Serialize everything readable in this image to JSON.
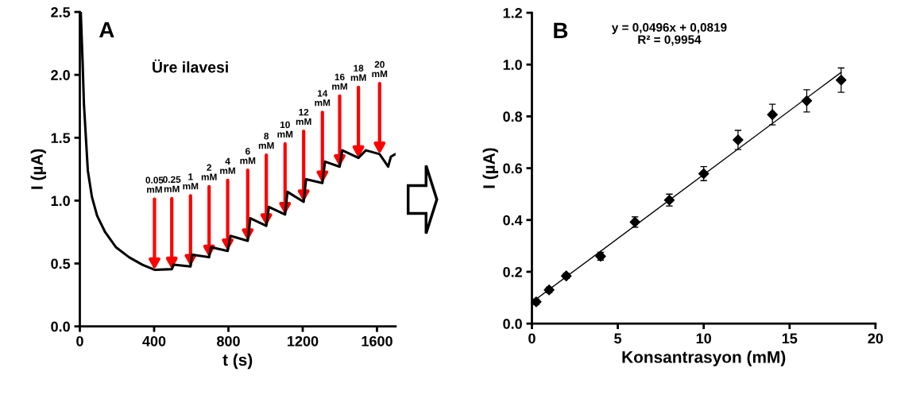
{
  "chart_data": [
    {
      "type": "line",
      "title": "A",
      "xlabel": "t (s)",
      "ylabel": "I (µA)",
      "xlim": [
        0,
        1700
      ],
      "xticks": [
        0,
        400,
        800,
        1200,
        1600
      ],
      "ylim": [
        0,
        2.5
      ],
      "yticks": [
        {
          "value": 0,
          "label": "0.0"
        },
        {
          "value": 0.5,
          "label": "0.5"
        },
        {
          "value": 1,
          "label": "1.0"
        },
        {
          "value": 1.5,
          "label": "1.5"
        },
        {
          "value": 2,
          "label": "2.0"
        },
        {
          "value": 2.5,
          "label": "2.5"
        }
      ],
      "series": [
        {
          "color": "#000000",
          "x": [
            5,
            15,
            22,
            43,
            65,
            93,
            136,
            194,
            265,
            337,
            402,
            495,
            505,
            596,
            605,
            696,
            706,
            796,
            811,
            904,
            918,
            1004,
            1018,
            1105,
            1118,
            1205,
            1218,
            1306,
            1320,
            1399,
            1413,
            1500,
            1540,
            1614,
            1660,
            1675,
            1700
          ],
          "values": [
            2.5,
            2.1,
            1.77,
            1.24,
            1.03,
            0.88,
            0.75,
            0.63,
            0.55,
            0.49,
            0.45,
            0.455,
            0.49,
            0.477,
            0.57,
            0.55,
            0.63,
            0.6,
            0.72,
            0.68,
            0.86,
            0.8,
            0.95,
            0.89,
            1.07,
            0.99,
            1.17,
            1.14,
            1.31,
            1.27,
            1.4,
            1.34,
            1.4,
            1.37,
            1.27,
            1.35,
            1.37
          ]
        }
      ],
      "annotations": [
        "Üre ilavesi",
        {
          "text": "0.05\nmM",
          "x": 402,
          "y": 0.45
        },
        {
          "text": "0.25\nmM",
          "x": 495,
          "y": 0.455
        },
        {
          "text": "1\nmM",
          "x": 596,
          "y": 0.477
        },
        {
          "text": "2\nmM",
          "x": 696,
          "y": 0.55
        },
        {
          "text": "4\nmM",
          "x": 796,
          "y": 0.6
        },
        {
          "text": "6\nmM",
          "x": 904,
          "y": 0.68
        },
        {
          "text": "8\nmM",
          "x": 1004,
          "y": 0.8
        },
        {
          "text": "10\nmM",
          "x": 1105,
          "y": 0.89
        },
        {
          "text": "12\nmM",
          "x": 1205,
          "y": 0.99
        },
        {
          "text": "14\nmM",
          "x": 1306,
          "y": 1.14
        },
        {
          "text": "16\nmM",
          "x": 1399,
          "y": 1.27
        },
        {
          "text": "18\nmM",
          "x": 1500,
          "y": 1.34
        },
        {
          "text": "20\nmM",
          "x": 1614,
          "y": 1.37
        }
      ]
    },
    {
      "type": "scatter",
      "title": "B",
      "xlabel": "Konsantrasyon (mM)",
      "ylabel": "I (µA)",
      "xlim": [
        0,
        20
      ],
      "xticks": [
        0,
        5,
        10,
        15,
        20
      ],
      "ylim": [
        0,
        1.2
      ],
      "yticks": [
        {
          "value": 0,
          "label": "0.0"
        },
        {
          "value": 0.2,
          "label": "0.2"
        },
        {
          "value": 0.4,
          "label": "0.4"
        },
        {
          "value": 0.6,
          "label": "0.6"
        },
        {
          "value": 0.8,
          "label": "0.8"
        },
        {
          "value": 1,
          "label": "1.0"
        },
        {
          "value": 1.2,
          "label": "1.2"
        }
      ],
      "series": [
        {
          "type": "scatter",
          "marker": "diamond",
          "color": "#000000",
          "x": [
            0.25,
            1,
            2,
            4,
            6,
            8,
            10,
            12,
            14,
            16,
            18
          ],
          "values": [
            0.084,
            0.13,
            0.184,
            0.26,
            0.392,
            0.477,
            0.579,
            0.709,
            0.807,
            0.86,
            0.94
          ],
          "errors": [
            0.01,
            0.01,
            0.01,
            0.015,
            0.02,
            0.023,
            0.027,
            0.037,
            0.04,
            0.043,
            0.047
          ]
        },
        {
          "type": "line",
          "color": "#000000",
          "x": [
            0,
            18
          ],
          "values": [
            0.082,
            0.97
          ]
        }
      ],
      "annotations": [
        "y = 0,0496x + 0,0819\nR² = 0,9954"
      ]
    }
  ]
}
